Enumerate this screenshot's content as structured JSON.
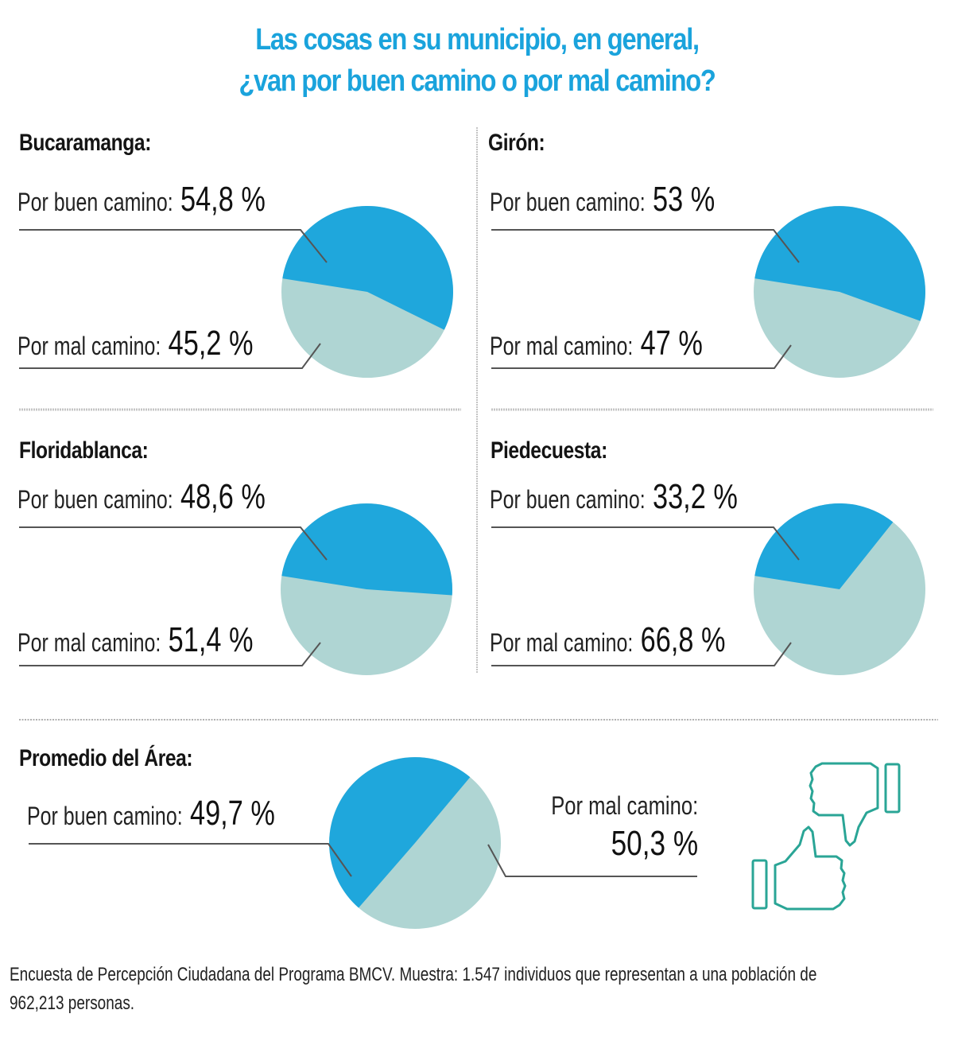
{
  "title": {
    "line1": "Las cosas en su municipio, en general,",
    "line2": "¿van por buen camino o por mal camino?"
  },
  "colors": {
    "title": "#1aa3dc",
    "buen_camino": "#1fa7dc",
    "mal_camino": "#afd5d3",
    "icon": "#2aa596",
    "leader_line": "#555555",
    "divider": "#bbbbbb"
  },
  "municipios": [
    {
      "name": "Bucaramanga:",
      "buen_label": "Por buen camino:",
      "buen_pct": "54,8 %",
      "mal_label": "Por mal camino:",
      "mal_pct": "45,2 %"
    },
    {
      "name": "Girón:",
      "buen_label": "Por buen camino:",
      "buen_pct": "53 %",
      "mal_label": "Por mal camino:",
      "mal_pct": "47 %"
    },
    {
      "name": "Floridablanca:",
      "buen_label": "Por buen camino:",
      "buen_pct": "48,6 %",
      "mal_label": "Por mal camino:",
      "mal_pct": "51,4 %"
    },
    {
      "name": "Piedecuesta:",
      "buen_label": "Por buen camino:",
      "buen_pct": "33,2 %",
      "mal_label": "Por mal camino:",
      "mal_pct": "66,8 %"
    }
  ],
  "promedio": {
    "name": "Promedio del Área:",
    "buen_label": "Por buen camino:",
    "buen_pct": "49,7 %",
    "mal_label": "Por mal camino:",
    "mal_pct": "50,3 %"
  },
  "footer": {
    "line1": "Encuesta de Percepción Ciudadana del Programa BMCV. Muestra: 1.547  individuos que representan a una población de",
    "line2": "962,213 personas."
  },
  "icons": [
    "thumbs-down-icon",
    "thumbs-up-icon"
  ],
  "chart_data": [
    {
      "type": "pie",
      "title": "Bucaramanga",
      "categories": [
        "Por buen camino",
        "Por mal camino"
      ],
      "values": [
        54.8,
        45.2
      ],
      "colors": [
        "#1fa7dc",
        "#afd5d3"
      ]
    },
    {
      "type": "pie",
      "title": "Girón",
      "categories": [
        "Por buen camino",
        "Por mal camino"
      ],
      "values": [
        53,
        47
      ],
      "colors": [
        "#1fa7dc",
        "#afd5d3"
      ]
    },
    {
      "type": "pie",
      "title": "Floridablanca",
      "categories": [
        "Por buen camino",
        "Por mal camino"
      ],
      "values": [
        48.6,
        51.4
      ],
      "colors": [
        "#1fa7dc",
        "#afd5d3"
      ]
    },
    {
      "type": "pie",
      "title": "Piedecuesta",
      "categories": [
        "Por buen camino",
        "Por mal camino"
      ],
      "values": [
        33.2,
        66.8
      ],
      "colors": [
        "#1fa7dc",
        "#afd5d3"
      ]
    },
    {
      "type": "pie",
      "title": "Promedio del Área",
      "categories": [
        "Por buen camino",
        "Por mal camino"
      ],
      "values": [
        49.7,
        50.3
      ],
      "colors": [
        "#1fa7dc",
        "#afd5d3"
      ]
    }
  ]
}
